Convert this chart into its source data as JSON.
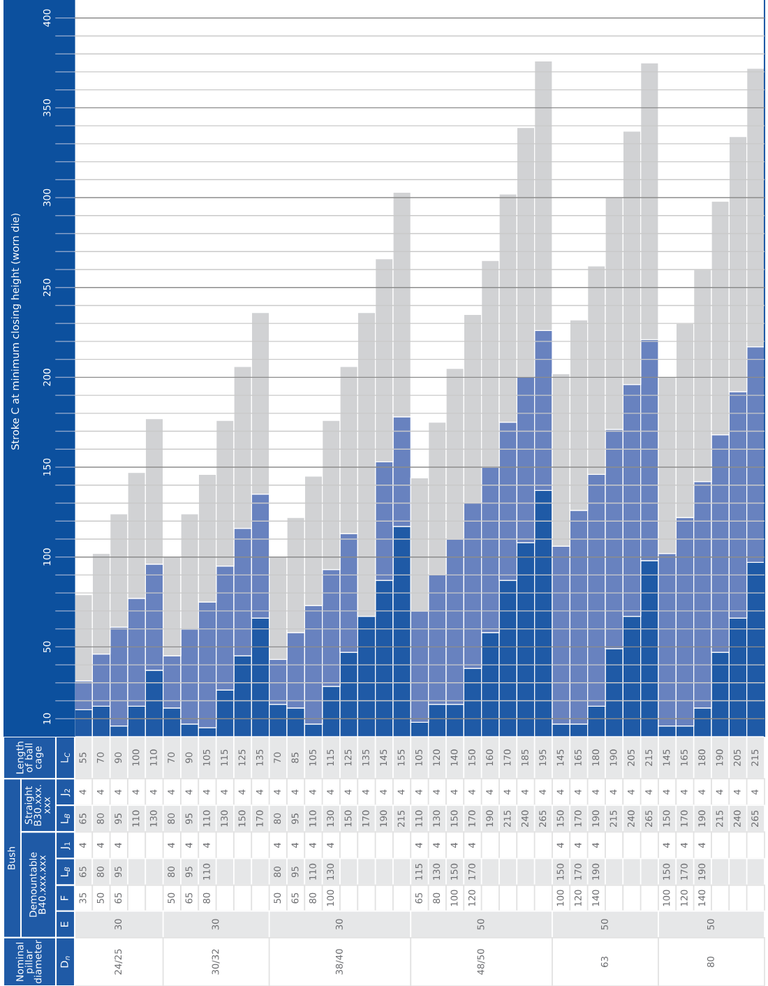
{
  "chart_data": [
    {
      "type": "bar",
      "stacked": true,
      "ylabel": "Stroke C at minimum closing height (worn die)",
      "categories": [
        null,
        null,
        null,
        null,
        null,
        null,
        null,
        null,
        null,
        null,
        null,
        null,
        null,
        null,
        null,
        null,
        null,
        null,
        null,
        null,
        null,
        null,
        null,
        null,
        null,
        null,
        null,
        null,
        null,
        null,
        null,
        null,
        null,
        null,
        null,
        null,
        null,
        null,
        null
      ],
      "series": [
        {
          "color": "#1f5aa6",
          "values": [
            15,
            17,
            6,
            17,
            37,
            16,
            7,
            5,
            26,
            45,
            66,
            18,
            16,
            7,
            28,
            47,
            67,
            87,
            117,
            8,
            18,
            18,
            38,
            58,
            87,
            108,
            137,
            7,
            7,
            17,
            49,
            67,
            98,
            6,
            6,
            16,
            47,
            66,
            97
          ]
        },
        {
          "color": "#6882bf",
          "values": [
            16,
            29,
            55,
            60,
            59,
            29,
            53,
            70,
            69,
            71,
            69,
            25,
            42,
            66,
            65,
            66,
            0,
            66,
            61,
            62,
            72,
            92,
            92,
            92,
            88,
            92,
            89,
            99,
            119,
            129,
            122,
            129,
            123,
            96,
            116,
            126,
            121,
            126,
            120
          ]
        },
        {
          "color": "#d1d2d4",
          "values": [
            48,
            56,
            63,
            70,
            81,
            55,
            64,
            71,
            81,
            90,
            101,
            57,
            64,
            72,
            83,
            93,
            169,
            113,
            125,
            74,
            85,
            95,
            105,
            115,
            127,
            139,
            150,
            96,
            106,
            116,
            129,
            141,
            154,
            98,
            108,
            118,
            130,
            142,
            155
          ]
        }
      ],
      "ylim": [
        0,
        410
      ],
      "yticks": [
        10,
        {
          "value": 20,
          "label": null
        },
        {
          "value": 30,
          "label": null
        },
        {
          "value": 40,
          "label": null
        },
        50,
        {
          "value": 60,
          "label": null
        },
        {
          "value": 70,
          "label": null
        },
        {
          "value": 80,
          "label": null
        },
        {
          "value": 90,
          "label": null
        },
        100,
        {
          "value": 110,
          "label": null
        },
        {
          "value": 120,
          "label": null
        },
        {
          "value": 130,
          "label": null
        },
        {
          "value": 140,
          "label": null
        },
        150,
        {
          "value": 160,
          "label": null
        },
        {
          "value": 170,
          "label": null
        },
        {
          "value": 180,
          "label": null
        },
        {
          "value": 190,
          "label": null
        },
        200,
        {
          "value": 210,
          "label": null
        },
        {
          "value": 220,
          "label": null
        },
        {
          "value": 230,
          "label": null
        },
        {
          "value": 240,
          "label": null
        },
        250,
        {
          "value": 260,
          "label": null
        },
        {
          "value": 270,
          "label": null
        },
        {
          "value": 280,
          "label": null
        },
        {
          "value": 290,
          "label": null
        },
        300,
        {
          "value": 310,
          "label": null
        },
        {
          "value": 320,
          "label": null
        },
        {
          "value": 330,
          "label": null
        },
        {
          "value": 340,
          "label": null
        },
        350,
        {
          "value": 360,
          "label": null
        },
        {
          "value": 370,
          "label": null
        },
        {
          "value": 380,
          "label": null
        },
        {
          "value": 390,
          "label": null
        },
        400
      ],
      "grid": "y",
      "tick_labels": "y"
    },
    {
      "type": "other",
      "annotations": [
        "Length\nof ball\ncage",
        "Bush",
        "Straight\nB30.xxx.\nxxx",
        "Demountable\nB40.xxx.xxx",
        "Nominal\npillar\ndiameter"
      ],
      "y_categories": [
        "L$_{C}$",
        "J$_{2}$",
        "L$_{B}$",
        "J$_{1}$",
        "L$_{B}$",
        "F",
        "E",
        "D$_{n}$"
      ],
      "cell_labels": [
        [
          "55",
          "70",
          "90",
          "100",
          "110",
          "70",
          "90",
          "105",
          "115",
          "125",
          "135",
          "70",
          "85",
          "105",
          "115",
          "125",
          "135",
          "145",
          "155",
          "105",
          "120",
          "140",
          "150",
          "160",
          "170",
          "185",
          "195",
          "145",
          "165",
          "180",
          "190",
          "205",
          "215",
          "145",
          "165",
          "180",
          "190",
          "205",
          "215"
        ],
        [
          "4",
          "4",
          "4",
          "4",
          "4",
          "4",
          "4",
          "4",
          "4",
          "4",
          "4",
          "4",
          "4",
          "4",
          "4",
          "4",
          "4",
          "4",
          "4",
          "4",
          "4",
          "4",
          "4",
          "4",
          "4",
          "4",
          "4",
          "4",
          "4",
          "4",
          "4",
          "4",
          "4",
          "4",
          "4",
          "4",
          "4",
          "4",
          "4"
        ],
        [
          "65",
          "80",
          "95",
          "110",
          "130",
          "80",
          "95",
          "110",
          "130",
          "150",
          "170",
          "80",
          "95",
          "110",
          "130",
          "150",
          "170",
          "190",
          "215",
          "110",
          "130",
          "150",
          "170",
          "190",
          "215",
          "240",
          "265",
          "150",
          "170",
          "190",
          "215",
          "240",
          "265",
          "150",
          "170",
          "190",
          "215",
          "240",
          "265"
        ],
        [
          "4",
          "4",
          "4",
          null,
          null,
          "4",
          "4",
          "4",
          null,
          null,
          null,
          "4",
          "4",
          "4",
          "4",
          null,
          null,
          null,
          null,
          "4",
          "4",
          "4",
          "4",
          null,
          null,
          null,
          null,
          "4",
          "4",
          "4",
          null,
          null,
          null,
          "4",
          "4",
          "4",
          null,
          null,
          null
        ],
        [
          "65",
          "80",
          "95",
          null,
          null,
          "80",
          "95",
          "110",
          null,
          null,
          null,
          "80",
          "95",
          "110",
          "130",
          null,
          null,
          null,
          null,
          "115",
          "130",
          "150",
          "170",
          null,
          null,
          null,
          null,
          "150",
          "170",
          "190",
          null,
          null,
          null,
          "150",
          "170",
          "190",
          null,
          null,
          null
        ],
        [
          "35",
          "50",
          "65",
          null,
          null,
          "50",
          "65",
          "80",
          null,
          null,
          null,
          "50",
          "65",
          "80",
          "100",
          null,
          null,
          null,
          null,
          "65",
          "80",
          "100",
          "120",
          null,
          null,
          null,
          null,
          "100",
          "120",
          "140",
          null,
          null,
          null,
          "100",
          "120",
          "140",
          null,
          null,
          null
        ],
        [
          "30",
          null,
          null,
          null,
          null,
          "30",
          null,
          null,
          null,
          null,
          null,
          "30",
          null,
          null,
          null,
          null,
          null,
          null,
          null,
          "50",
          null,
          null,
          null,
          null,
          null,
          null,
          null,
          "50",
          null,
          null,
          null,
          null,
          null,
          "50",
          null,
          null,
          null,
          null,
          null
        ],
        [
          "24/25",
          null,
          null,
          null,
          null,
          "30/32",
          null,
          null,
          null,
          null,
          null,
          "38/40",
          null,
          null,
          null,
          null,
          null,
          null,
          null,
          "48/50",
          null,
          null,
          null,
          null,
          null,
          null,
          null,
          "63",
          null,
          null,
          null,
          null,
          null,
          "80",
          null,
          null,
          null,
          null,
          null
        ]
      ]
    }
  ]
}
